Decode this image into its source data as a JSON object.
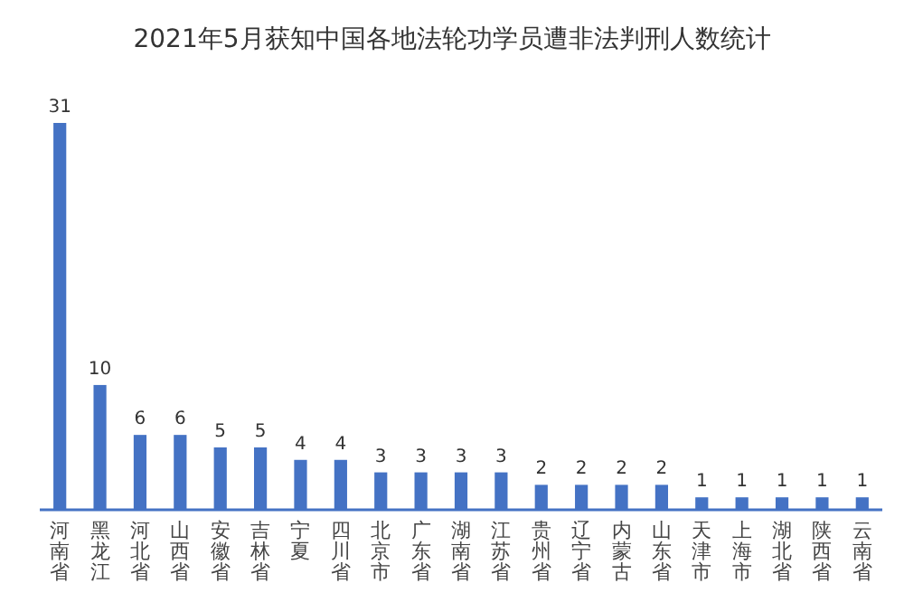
{
  "chart_data": {
    "type": "bar",
    "title": "2021年5月获知中国各地法轮功学员遭非法判刑人数统计",
    "categories": [
      "河南省",
      "黑龙江",
      "河北省",
      "山西省",
      "安徽省",
      "吉林省",
      "宁夏",
      "四川省",
      "北京市",
      "广东省",
      "湖南省",
      "江苏省",
      "贵州省",
      "辽宁省",
      "内蒙古",
      "山东省",
      "天津市",
      "上海市",
      "湖北省",
      "陕西省",
      "云南省"
    ],
    "values": [
      31,
      10,
      6,
      6,
      5,
      5,
      4,
      4,
      3,
      3,
      3,
      3,
      2,
      2,
      2,
      2,
      1,
      1,
      1,
      1,
      1
    ],
    "color": "#4472c4",
    "data_labels": true
  }
}
